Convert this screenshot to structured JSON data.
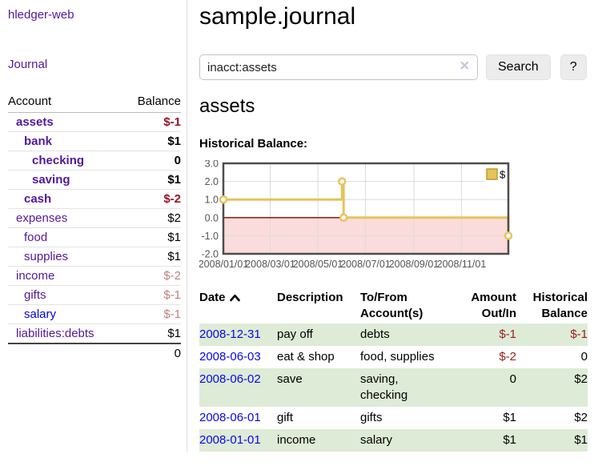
{
  "app": {
    "title": "hledger-web"
  },
  "sidebar": {
    "journal_label": "Journal",
    "accounts": {
      "header_account": "Account",
      "header_balance": "Balance",
      "rows": [
        {
          "name": "assets",
          "balance": "$-1"
        },
        {
          "name": "bank",
          "balance": "$1"
        },
        {
          "name": "checking",
          "balance": "0"
        },
        {
          "name": "saving",
          "balance": "$1"
        },
        {
          "name": "cash",
          "balance": "$-2"
        },
        {
          "name": "expenses",
          "balance": "$2"
        },
        {
          "name": "food",
          "balance": "$1"
        },
        {
          "name": "supplies",
          "balance": "$1"
        },
        {
          "name": "income",
          "balance": "$-2"
        },
        {
          "name": "gifts",
          "balance": "$-1"
        },
        {
          "name": "salary",
          "balance": "$-1"
        },
        {
          "name": "liabilities:debts",
          "balance": "$1"
        }
      ],
      "total": "0"
    }
  },
  "main": {
    "title": "sample.journal",
    "search": {
      "value": "inacct:assets",
      "clear_icon": "✕",
      "button_label": "Search",
      "help_label": "?"
    },
    "account_heading": "assets",
    "register": {
      "headers": {
        "date": "Date",
        "description": "Description",
        "accounts": "To/From Account(s)",
        "amount": "Amount Out/In",
        "balance": "Historical Balance"
      },
      "rows": [
        {
          "date": "2008-12-31",
          "description": "pay off",
          "accounts": "debts",
          "amount": "$-1",
          "balance": "$-1"
        },
        {
          "date": "2008-06-03",
          "description": "eat & shop",
          "accounts": "food, supplies",
          "amount": "$-2",
          "balance": "0"
        },
        {
          "date": "2008-06-02",
          "description": "save",
          "accounts": "saving, checking",
          "amount": "0",
          "balance": "$2"
        },
        {
          "date": "2008-06-01",
          "description": "gift",
          "accounts": "gifts",
          "amount": "$1",
          "balance": "$2"
        },
        {
          "date": "2008-01-01",
          "description": "income",
          "accounts": "salary",
          "amount": "$1",
          "balance": "$1"
        }
      ]
    }
  },
  "chart_data": {
    "type": "line",
    "style": "step",
    "title": "Historical Balance:",
    "series": [
      {
        "name": "$",
        "color": "#e8c35a",
        "points": [
          [
            "2008-01-01",
            1
          ],
          [
            "2008-06-01",
            2
          ],
          [
            "2008-06-03",
            0
          ],
          [
            "2008-12-31",
            -1
          ]
        ]
      }
    ],
    "x_ticks": [
      "2008/01/01",
      "2008/03/01",
      "2008/05/01",
      "2008/07/01",
      "2008/09/01",
      "2008/11/01"
    ],
    "y_ticks": [
      3.0,
      2.0,
      1.0,
      0.0,
      -1.0,
      -2.0
    ],
    "xlim": [
      "2008-01-01",
      "2008-12-31"
    ],
    "ylim": [
      -2,
      3
    ],
    "grid": true,
    "legend_position": "top-right",
    "negative_region_fill": "#fbdcdc",
    "zero_line_color": "#8b0000",
    "grid_color": "#dcdcdc",
    "border_color": "#4d4d4d",
    "tick_label_color": "#545454"
  }
}
